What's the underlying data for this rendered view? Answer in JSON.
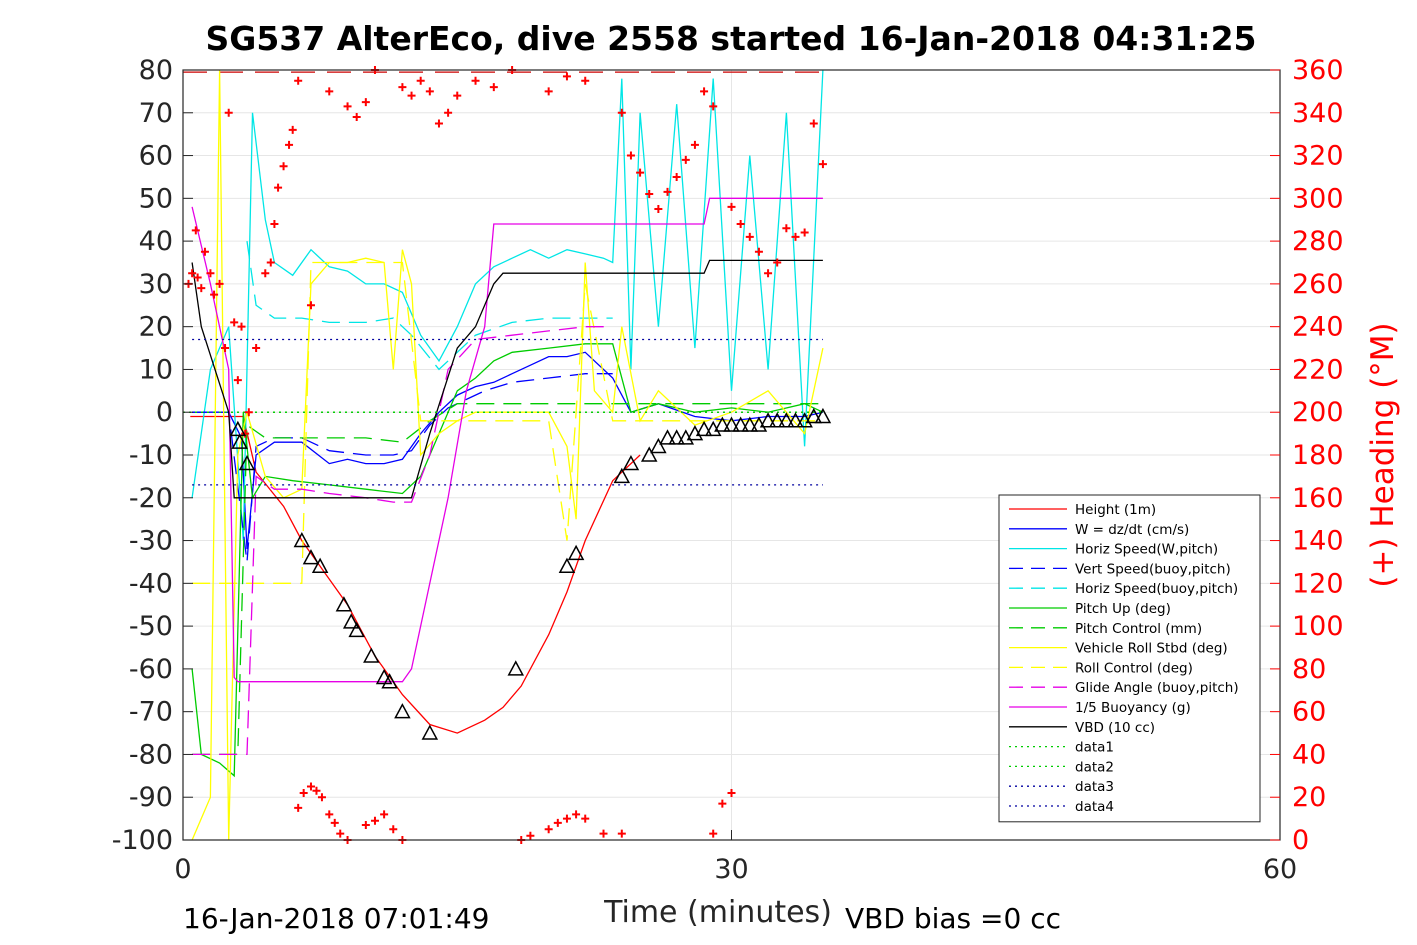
{
  "chart_data": {
    "type": "line",
    "title": "SG537 AlterEco, dive 2558 started 16-Jan-2018 04:31:25",
    "xlabel": "Time (minutes)",
    "ylabel_right": "(+) Heading (°M)",
    "footer_left": "16-Jan-2018 07:01:49",
    "footer_right": "VBD bias =0 cc",
    "xlim": [
      0,
      60
    ],
    "ylim": [
      -100,
      80
    ],
    "ylim_right": [
      0,
      360
    ],
    "x_ticks": [
      "0",
      "30",
      "60"
    ],
    "y_ticks": [
      "80",
      "70",
      "60",
      "50",
      "40",
      "30",
      "20",
      "10",
      "0",
      "-10",
      "-20",
      "-30",
      "-40",
      "-50",
      "-60",
      "-70",
      "-80",
      "-90",
      "-100"
    ],
    "y_ticks_right": [
      "360",
      "340",
      "320",
      "300",
      "280",
      "260",
      "240",
      "220",
      "200",
      "180",
      "160",
      "140",
      "120",
      "100",
      "80",
      "60",
      "40",
      "20",
      "0"
    ],
    "grid": true,
    "legend_position": "lower-right",
    "series": [
      {
        "name": "Height (1m)",
        "color": "#ff0000",
        "style": "solid",
        "x": [
          0.4,
          2.0,
          3.0,
          3.3,
          4.0,
          5.5,
          6.5,
          7.5,
          9.0,
          10.5,
          12.0,
          13.5,
          15.0,
          16.5,
          17.5,
          18.5,
          20.0,
          21.0,
          22.0,
          23.5,
          24.5,
          25.0
        ],
        "y": [
          -1,
          -1,
          -1,
          -1,
          -14,
          -22,
          -30,
          -36,
          -45,
          -57,
          -66,
          -73,
          -75,
          -72,
          -69,
          -64,
          -52,
          -42,
          -30,
          -16,
          -12,
          -10
        ]
      },
      {
        "name": "W = dz/dt (cm/s)",
        "color": "#0000ff",
        "style": "solid",
        "x": [
          0.5,
          2.5,
          3.2,
          3.5,
          4.0,
          5.0,
          6.5,
          8.0,
          9.0,
          10.0,
          11.0,
          12.0,
          13.0,
          14.0,
          15.0,
          16.0,
          17.0,
          18.0,
          19.0,
          20.0,
          21.0,
          22.0,
          23.5,
          24.5,
          26.0,
          28.0,
          30.0,
          32.0,
          34.0,
          35.0
        ],
        "y": [
          0,
          0,
          -6,
          -32,
          -10,
          -7,
          -7,
          -12,
          -11,
          -12,
          -12,
          -11,
          -5,
          0,
          4,
          6,
          7,
          9,
          11,
          13,
          13,
          14,
          8,
          0,
          2,
          -1,
          -2,
          -1,
          -1,
          0
        ]
      },
      {
        "name": "Horiz Speed(W,pitch)",
        "color": "#00e6e6",
        "style": "solid",
        "x": [
          0.5,
          1.5,
          2.5,
          3.3,
          3.8,
          4.5,
          5.0,
          6.0,
          7.0,
          8.0,
          9.0,
          10.0,
          11.0,
          12.0,
          13.0,
          14.0,
          15.0,
          16.0,
          17.0,
          18.0,
          19.0,
          20.0,
          21.0,
          22.0,
          23.0,
          23.5,
          24.0,
          24.5,
          25.0,
          26.0,
          27.0,
          28.0,
          29.0,
          30.0,
          31.0,
          32.0,
          33.0,
          34.0,
          35.0
        ],
        "y": [
          -20,
          10,
          20,
          -30,
          70,
          45,
          35,
          32,
          38,
          34,
          33,
          30,
          30,
          28,
          18,
          12,
          20,
          30,
          34,
          36,
          38,
          36,
          38,
          37,
          36,
          35,
          78,
          10,
          70,
          20,
          72,
          15,
          78,
          5,
          60,
          10,
          70,
          -8,
          80
        ]
      },
      {
        "name": "Vert Speed(buoy,pitch)",
        "color": "#0000ff",
        "style": "dashed",
        "x": [
          0.5,
          2.5,
          3.5,
          4.0,
          5.0,
          6.5,
          8.0,
          10.0,
          11.5,
          12.5,
          13.5,
          14.5,
          15.5,
          16.5,
          18.0,
          20.0,
          22.0,
          23.5
        ],
        "y": [
          0,
          0,
          -35,
          -8,
          -6,
          -6,
          -9,
          -10,
          -10,
          -9,
          -3,
          1,
          3,
          5,
          7,
          8,
          9,
          9
        ]
      },
      {
        "name": "Horiz Speed(buoy,pitch)",
        "color": "#00e6e6",
        "style": "dashed",
        "x": [
          3.5,
          4.0,
          5.0,
          6.5,
          8.0,
          10.0,
          11.5,
          12.5,
          14.0,
          16.0,
          18.0,
          20.0,
          22.0,
          23.5
        ],
        "y": [
          40,
          25,
          22,
          22,
          21,
          21,
          22,
          18,
          10,
          18,
          21,
          22,
          22,
          22
        ]
      },
      {
        "name": "Pitch Up (deg)",
        "color": "#00cc00",
        "style": "solid",
        "x": [
          0.5,
          1.0,
          2.0,
          2.8,
          3.3,
          3.8,
          4.5,
          6.0,
          8.0,
          10.0,
          12.0,
          13.0,
          14.0,
          15.0,
          16.0,
          17.0,
          18.0,
          20.0,
          22.0,
          23.5,
          24.5,
          26.0,
          28.0,
          30.0,
          32.0,
          34.0,
          35.0
        ],
        "y": [
          -60,
          -80,
          -82,
          -85,
          0,
          -20,
          -15,
          -16,
          -17,
          -18,
          -19,
          -15,
          -5,
          5,
          8,
          12,
          14,
          15,
          16,
          16,
          0,
          2,
          0,
          1,
          0,
          2,
          0
        ]
      },
      {
        "name": "Pitch Control (mm)",
        "color": "#00cc00",
        "style": "dashed",
        "x": [
          0.5,
          3.0,
          3.5,
          4.5,
          6.0,
          8.0,
          10.0,
          12.0,
          13.5,
          15.0,
          17.0,
          19.0,
          21.0,
          23.5,
          24.5,
          26.0,
          28.0,
          30.0,
          32.0,
          34.0,
          35.0
        ],
        "y": [
          -80,
          -80,
          -3,
          -6,
          -6,
          -6,
          -6,
          -7,
          -2,
          2,
          2,
          2,
          2,
          2,
          2,
          2,
          2,
          2,
          2,
          2,
          2
        ]
      },
      {
        "name": "Vehicle Roll Stbd (deg)",
        "color": "#ffff00",
        "style": "solid",
        "x": [
          0.5,
          1.5,
          2.0,
          2.5,
          3.0,
          3.5,
          4.5,
          5.5,
          6.5,
          7.0,
          8.0,
          9.0,
          10.0,
          11.0,
          11.5,
          12.0,
          12.5,
          13.0,
          14.0,
          15.0,
          16.0,
          18.0,
          20.0,
          21.0,
          21.5,
          22.0,
          22.5,
          23.5,
          24.0,
          25.0,
          26.0,
          28.0,
          30.0,
          32.0,
          34.0,
          35.0
        ],
        "y": [
          -100,
          -90,
          80,
          -100,
          -10,
          0,
          -15,
          -20,
          -18,
          30,
          35,
          35,
          36,
          35,
          10,
          38,
          30,
          -10,
          -5,
          -2,
          0,
          0,
          0,
          -8,
          -25,
          35,
          5,
          0,
          20,
          -2,
          5,
          -3,
          0,
          5,
          -5,
          15
        ]
      },
      {
        "name": "Roll Control (deg)",
        "color": "#ffff00",
        "style": "dashed",
        "x": [
          0.5,
          2.5,
          3.0,
          4.0,
          5.0,
          6.5,
          7.0,
          8.0,
          9.0,
          10.0,
          11.0,
          12.0,
          13.0,
          14.0,
          16.0,
          18.0,
          20.0,
          21.0,
          22.0,
          23.5,
          25.0,
          27.0,
          29.0,
          31.0,
          33.0,
          35.0
        ],
        "y": [
          -40,
          -40,
          -40,
          -40,
          -40,
          -40,
          35,
          35,
          35,
          35,
          35,
          35,
          -2,
          -2,
          -2,
          -2,
          -2,
          -30,
          30,
          -2,
          -2,
          -2,
          -2,
          -2,
          -2,
          -2
        ]
      },
      {
        "name": "Glide Angle (buoy,pitch)",
        "color": "#e600e6",
        "style": "dashed",
        "x": [
          0.5,
          2.5,
          3.5,
          4.0,
          5.0,
          6.5,
          8.0,
          10.0,
          11.5,
          12.5,
          13.5,
          14.5,
          16.0,
          18.0,
          20.0,
          22.0,
          23.5
        ],
        "y": [
          -80,
          -80,
          -80,
          -15,
          -18,
          -18,
          -19,
          -20,
          -21,
          -21,
          -10,
          10,
          17,
          18,
          19,
          20,
          20
        ]
      },
      {
        "name": "1/5 Buoyancy (g)",
        "color": "#e600e6",
        "style": "solid",
        "x": [
          0.5,
          1.5,
          2.5,
          2.8,
          3.0,
          5.0,
          8.0,
          10.0,
          12.0,
          12.5,
          13.5,
          14.5,
          15.5,
          16.5,
          17.0,
          20.0,
          25.0,
          28.5,
          28.8,
          30.0,
          35.0
        ],
        "y": [
          48,
          30,
          10,
          -62,
          -63,
          -63,
          -63,
          -63,
          -63,
          -60,
          -40,
          -20,
          5,
          20,
          44,
          44,
          44,
          44,
          50,
          50,
          50
        ]
      },
      {
        "name": "VBD (10 cc)",
        "color": "#000000",
        "style": "solid",
        "x": [
          0.5,
          1.0,
          2.5,
          2.8,
          5.0,
          8.0,
          10.0,
          12.0,
          12.5,
          13.5,
          15.0,
          16.0,
          17.0,
          17.5,
          20.0,
          25.0,
          28.5,
          28.8,
          30.0,
          35.0
        ],
        "y": [
          35,
          20,
          0,
          -20,
          -20,
          -20,
          -20,
          -20,
          -20,
          -5,
          15,
          20,
          30,
          32.5,
          32.5,
          32.5,
          32.5,
          35.5,
          35.5,
          35.5
        ]
      },
      {
        "name": "data1",
        "color": "#00cc00",
        "style": "dotted",
        "x": [
          0,
          35
        ],
        "y": [
          0,
          0
        ]
      },
      {
        "name": "data2",
        "color": "#00cc00",
        "style": "dotted",
        "x": [
          0,
          35
        ],
        "y": [
          0,
          0
        ]
      },
      {
        "name": "data3",
        "color": "#0000a0",
        "style": "dotted",
        "x": [
          0.5,
          35
        ],
        "y": [
          17,
          17
        ]
      },
      {
        "name": "data4",
        "color": "#0000a0",
        "style": "dotted",
        "x": [
          0.5,
          35
        ],
        "y": [
          -17,
          -17
        ]
      }
    ],
    "reference_lines": [
      {
        "axis": "right",
        "value": 359,
        "color": "#cc0000",
        "style": "dashed",
        "x": [
          0,
          35
        ]
      }
    ],
    "depth_markers": [
      {
        "x": 3.0,
        "y": -4
      },
      {
        "x": 3.1,
        "y": -7
      },
      {
        "x": 3.5,
        "y": -12
      },
      {
        "x": 6.5,
        "y": -30
      },
      {
        "x": 7.0,
        "y": -34
      },
      {
        "x": 7.5,
        "y": -36
      },
      {
        "x": 8.8,
        "y": -45
      },
      {
        "x": 9.2,
        "y": -49
      },
      {
        "x": 9.5,
        "y": -51
      },
      {
        "x": 10.3,
        "y": -57
      },
      {
        "x": 11.0,
        "y": -62
      },
      {
        "x": 11.3,
        "y": -63
      },
      {
        "x": 12.0,
        "y": -70
      },
      {
        "x": 13.5,
        "y": -75
      },
      {
        "x": 18.2,
        "y": -60
      },
      {
        "x": 21.0,
        "y": -36
      },
      {
        "x": 21.5,
        "y": -33
      },
      {
        "x": 24.0,
        "y": -15
      },
      {
        "x": 24.5,
        "y": -12
      },
      {
        "x": 25.5,
        "y": -10
      },
      {
        "x": 26.0,
        "y": -8
      },
      {
        "x": 26.5,
        "y": -6
      },
      {
        "x": 27.0,
        "y": -6
      },
      {
        "x": 27.5,
        "y": -6
      },
      {
        "x": 28.0,
        "y": -5
      },
      {
        "x": 28.5,
        "y": -4
      },
      {
        "x": 29.0,
        "y": -4
      },
      {
        "x": 29.5,
        "y": -3
      },
      {
        "x": 30.0,
        "y": -3
      },
      {
        "x": 30.5,
        "y": -3
      },
      {
        "x": 31.0,
        "y": -3
      },
      {
        "x": 31.5,
        "y": -3
      },
      {
        "x": 32.0,
        "y": -2
      },
      {
        "x": 32.5,
        "y": -2
      },
      {
        "x": 33.0,
        "y": -2
      },
      {
        "x": 33.5,
        "y": -2
      },
      {
        "x": 34.0,
        "y": -2
      },
      {
        "x": 34.5,
        "y": -1
      },
      {
        "x": 35.0,
        "y": -1
      }
    ],
    "heading_points": [
      [
        0.3,
        260
      ],
      [
        0.5,
        265
      ],
      [
        0.7,
        285
      ],
      [
        0.8,
        263
      ],
      [
        1.0,
        258
      ],
      [
        1.2,
        275
      ],
      [
        1.5,
        265
      ],
      [
        1.7,
        255
      ],
      [
        2.0,
        260
      ],
      [
        2.3,
        230
      ],
      [
        2.5,
        340
      ],
      [
        2.8,
        242
      ],
      [
        3.0,
        215
      ],
      [
        3.2,
        240
      ],
      [
        3.4,
        190
      ],
      [
        3.6,
        200
      ],
      [
        4.0,
        230
      ],
      [
        4.5,
        265
      ],
      [
        4.8,
        270
      ],
      [
        5.0,
        288
      ],
      [
        5.2,
        305
      ],
      [
        5.5,
        315
      ],
      [
        5.8,
        325
      ],
      [
        6.0,
        332
      ],
      [
        6.3,
        355
      ],
      [
        6.6,
        370
      ],
      [
        7.0,
        250
      ],
      [
        8.0,
        350
      ],
      [
        9.0,
        343
      ],
      [
        9.5,
        338
      ],
      [
        10.0,
        345
      ],
      [
        10.5,
        360
      ],
      [
        11.0,
        365
      ],
      [
        12.0,
        352
      ],
      [
        12.5,
        348
      ],
      [
        13.0,
        355
      ],
      [
        13.5,
        350
      ],
      [
        14.0,
        335
      ],
      [
        14.5,
        340
      ],
      [
        15.0,
        348
      ],
      [
        16.0,
        355
      ],
      [
        17.0,
        352
      ],
      [
        18.0,
        360
      ],
      [
        19.0,
        362
      ],
      [
        20.0,
        350
      ],
      [
        21.0,
        357
      ],
      [
        22.0,
        355
      ],
      [
        23.0,
        362
      ],
      [
        24.0,
        340
      ],
      [
        24.5,
        320
      ],
      [
        25.0,
        312
      ],
      [
        25.5,
        302
      ],
      [
        26.0,
        295
      ],
      [
        26.5,
        303
      ],
      [
        27.0,
        310
      ],
      [
        27.5,
        318
      ],
      [
        28.0,
        325
      ],
      [
        28.5,
        350
      ],
      [
        29.0,
        343
      ],
      [
        30.0,
        296
      ],
      [
        30.5,
        288
      ],
      [
        31.0,
        282
      ],
      [
        31.5,
        275
      ],
      [
        32.0,
        265
      ],
      [
        32.5,
        270
      ],
      [
        33.0,
        286
      ],
      [
        33.5,
        282
      ],
      [
        34.0,
        284
      ],
      [
        34.5,
        335
      ],
      [
        35.0,
        316
      ],
      [
        6.3,
        15
      ],
      [
        6.6,
        22
      ],
      [
        7.0,
        25
      ],
      [
        7.3,
        23
      ],
      [
        7.6,
        20
      ],
      [
        8.0,
        12
      ],
      [
        8.3,
        8
      ],
      [
        8.6,
        3
      ],
      [
        9.0,
        0
      ],
      [
        10.0,
        7
      ],
      [
        10.5,
        9
      ],
      [
        11.0,
        12
      ],
      [
        11.5,
        5
      ],
      [
        12.0,
        0
      ],
      [
        18.5,
        0
      ],
      [
        19.0,
        2
      ],
      [
        20.0,
        5
      ],
      [
        20.5,
        8
      ],
      [
        21.0,
        10
      ],
      [
        21.5,
        12
      ],
      [
        22.0,
        10
      ],
      [
        23.0,
        3
      ],
      [
        24.0,
        3
      ],
      [
        29.0,
        3
      ],
      [
        29.5,
        17
      ],
      [
        30.0,
        22
      ]
    ]
  }
}
